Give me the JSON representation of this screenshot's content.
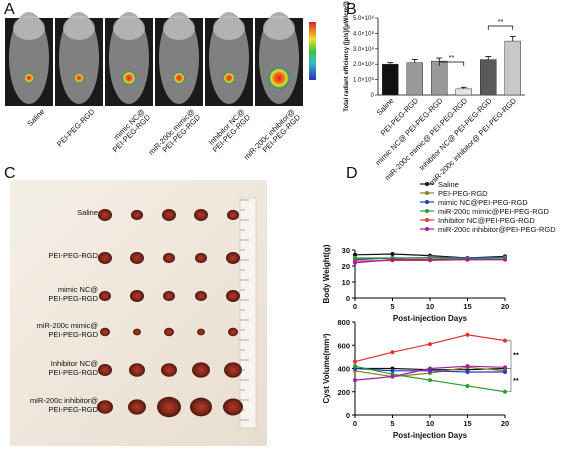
{
  "panel_labels": [
    "A",
    "B",
    "C",
    "D"
  ],
  "imaging": {
    "labels": [
      [
        "Saline"
      ],
      [
        "PEI-PEG-RGD"
      ],
      [
        "mimic NC@",
        "PEI-PEG-RGD"
      ],
      [
        "miR-200c mimic@",
        "PEI-PEG-RGD"
      ],
      [
        "Inhibitor NC@",
        "PEI-PEG-RGD"
      ],
      [
        "miR-200c inhibitor@",
        "PEI-PEG-RGD"
      ]
    ]
  },
  "tumor_photo": {
    "labels": [
      [
        "Saline"
      ],
      [
        "PEI-PEG-RGD"
      ],
      [
        "mimic NC@",
        "PEI-PEG-RGD"
      ],
      [
        "miR-200c mimic@",
        "PEI-PEG-RGD"
      ],
      [
        "Inhibitor NC@",
        "PEI-PEG-RGD"
      ],
      [
        "miR-200c inhibitor@",
        "PEI-PEG-RGD"
      ]
    ]
  },
  "chart_data": [
    {
      "type": "bar",
      "y_label": "Total radiant efficiency ([p/s]/[μW/cm²])",
      "categories": [
        "Saline",
        "PEI-PEG-RGD",
        "mimic NC@ PEI-PEG-RGD",
        "miR-200c mimic@ PEI-PEG-RGD",
        "Inhibitor NC@ PEI-PEG-RGD",
        "miR-200c inhibitor@ PEI-PEG-RGD"
      ],
      "values": [
        200000000,
        210000000,
        220000000,
        40000000,
        230000000,
        350000000
      ],
      "errors": [
        10000000,
        20000000,
        20000000,
        10000000,
        20000000,
        30000000
      ],
      "colors": [
        "#111111",
        "#9a9a9a",
        "#9a9a9a",
        "#e6e6e6",
        "#5a5a5a",
        "#c8c8c8"
      ],
      "ylim": [
        0,
        500000000
      ],
      "yticks": [
        0,
        {
          "value": 100000000,
          "label": "1.0×10⁸"
        },
        {
          "value": 200000000,
          "label": "2.0×10⁸"
        },
        {
          "value": 300000000,
          "label": "3.0×10⁸"
        },
        {
          "value": 400000000,
          "label": "4.0×10⁸"
        },
        {
          "value": 500000000,
          "label": "5.0×10⁸"
        }
      ],
      "annotations": [
        "**",
        "**"
      ]
    },
    {
      "type": "line",
      "y_label": "Body Weight(g)",
      "x_label": "Post-injection Days",
      "x": [
        0,
        5,
        10,
        15,
        20
      ],
      "xlim": [
        0,
        20
      ],
      "xticks": [
        0,
        5,
        10,
        15,
        20
      ],
      "ylim": [
        0,
        30
      ],
      "yticks": [
        0,
        10,
        20,
        30
      ],
      "series": [
        {
          "name": "Saline",
          "color": "#111111",
          "values": [
            27,
            27.5,
            26.5,
            25,
            26
          ]
        },
        {
          "name": "PEI-PEG-RGD",
          "color": "#8b7d2a",
          "values": [
            25,
            24.5,
            25.5,
            25,
            25
          ]
        },
        {
          "name": "mimic NC@PEI-PEG-RGD",
          "color": "#1f3fbf",
          "values": [
            24,
            25,
            25,
            25,
            25.5
          ]
        },
        {
          "name": "miR-200c mimic@PEI-PEG-RGD",
          "color": "#2e9e2e",
          "values": [
            25,
            25,
            25,
            24.5,
            25
          ]
        },
        {
          "name": "Inhibitor NC@PEI-PEG-RGD",
          "color": "#e8312f",
          "values": [
            23,
            23.5,
            23.5,
            24,
            24
          ]
        },
        {
          "name": "miR-200c inhibitor@PEI-PEG-RGD",
          "color": "#a020a0",
          "values": [
            22,
            24,
            24,
            24,
            24
          ]
        }
      ]
    },
    {
      "type": "line",
      "y_label": "Cyst Volume(mm³)",
      "x_label": "Post-injection Days",
      "x": [
        0,
        5,
        10,
        15,
        20
      ],
      "xlim": [
        0,
        20
      ],
      "xticks": [
        0,
        5,
        10,
        15,
        20
      ],
      "ylim": [
        0,
        800
      ],
      "yticks": [
        0,
        200,
        400,
        600,
        800
      ],
      "annotations": [
        "**",
        "**"
      ],
      "series": [
        {
          "color": "#111111",
          "values": [
            400,
            400,
            390,
            390,
            400
          ]
        },
        {
          "color": "#8b7d2a",
          "values": [
            380,
            330,
            360,
            410,
            380
          ]
        },
        {
          "color": "#1f3fbf",
          "values": [
            400,
            380,
            380,
            370,
            370
          ]
        },
        {
          "color": "#2e9e2e",
          "values": [
            420,
            350,
            300,
            250,
            200
          ]
        },
        {
          "color": "#e8312f",
          "values": [
            460,
            540,
            610,
            690,
            640
          ]
        },
        {
          "color": "#a020a0",
          "values": [
            300,
            330,
            400,
            420,
            410
          ]
        }
      ]
    }
  ]
}
